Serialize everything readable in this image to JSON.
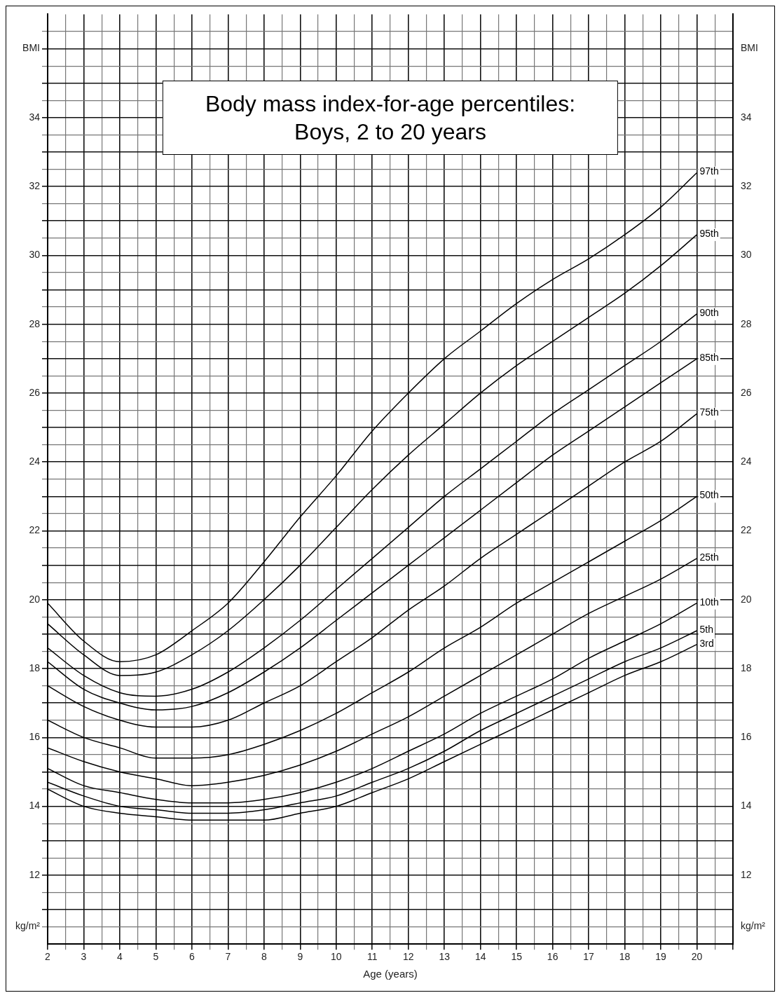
{
  "chart_data": {
    "type": "line",
    "title": "Body mass index-for-age percentiles:\nBoys, 2 to 20 years",
    "xlabel": "Age (years)",
    "x": [
      2,
      3,
      4,
      5,
      6,
      7,
      8,
      9,
      10,
      11,
      12,
      13,
      14,
      15,
      16,
      17,
      18,
      19,
      20
    ],
    "series": [
      {
        "name": "97th",
        "color": "#000000",
        "values": [
          19.9,
          18.8,
          18.2,
          18.4,
          19.1,
          19.9,
          21.1,
          22.4,
          23.6,
          24.9,
          26.0,
          27.0,
          27.8,
          28.6,
          29.3,
          29.9,
          30.6,
          31.4,
          32.4
        ]
      },
      {
        "name": "95th",
        "color": "#000000",
        "values": [
          19.3,
          18.4,
          17.8,
          17.9,
          18.4,
          19.1,
          20.0,
          21.0,
          22.1,
          23.2,
          24.2,
          25.1,
          26.0,
          26.8,
          27.5,
          28.2,
          28.9,
          29.7,
          30.6
        ]
      },
      {
        "name": "90th",
        "color": "#000000",
        "values": [
          18.6,
          17.8,
          17.3,
          17.2,
          17.4,
          17.9,
          18.6,
          19.4,
          20.3,
          21.2,
          22.1,
          23.0,
          23.8,
          24.6,
          25.4,
          26.1,
          26.8,
          27.5,
          28.3
        ]
      },
      {
        "name": "85th",
        "color": "#000000",
        "values": [
          18.2,
          17.4,
          17.0,
          16.8,
          16.9,
          17.3,
          17.9,
          18.6,
          19.4,
          20.2,
          21.0,
          21.8,
          22.6,
          23.4,
          24.2,
          24.9,
          25.6,
          26.3,
          27.0
        ]
      },
      {
        "name": "75th",
        "color": "#000000",
        "values": [
          17.5,
          16.9,
          16.5,
          16.3,
          16.3,
          16.5,
          17.0,
          17.5,
          18.2,
          18.9,
          19.7,
          20.4,
          21.2,
          21.9,
          22.6,
          23.3,
          24.0,
          24.6,
          25.4
        ]
      },
      {
        "name": "50th",
        "color": "#000000",
        "values": [
          16.5,
          16.0,
          15.7,
          15.4,
          15.4,
          15.5,
          15.8,
          16.2,
          16.7,
          17.3,
          17.9,
          18.6,
          19.2,
          19.9,
          20.5,
          21.1,
          21.7,
          22.3,
          23.0
        ]
      },
      {
        "name": "25th",
        "color": "#000000",
        "values": [
          15.7,
          15.3,
          15.0,
          14.8,
          14.6,
          14.7,
          14.9,
          15.2,
          15.6,
          16.1,
          16.6,
          17.2,
          17.8,
          18.4,
          19.0,
          19.6,
          20.1,
          20.6,
          21.2
        ]
      },
      {
        "name": "10th",
        "color": "#000000",
        "values": [
          15.1,
          14.6,
          14.4,
          14.2,
          14.1,
          14.1,
          14.2,
          14.4,
          14.7,
          15.1,
          15.6,
          16.1,
          16.7,
          17.2,
          17.7,
          18.3,
          18.8,
          19.3,
          19.9
        ]
      },
      {
        "name": "5th",
        "color": "#000000",
        "values": [
          14.7,
          14.3,
          14.0,
          13.9,
          13.8,
          13.8,
          13.9,
          14.1,
          14.3,
          14.7,
          15.1,
          15.6,
          16.2,
          16.7,
          17.2,
          17.7,
          18.2,
          18.6,
          19.1
        ]
      },
      {
        "name": "3rd",
        "color": "#000000",
        "values": [
          14.5,
          14.0,
          13.8,
          13.7,
          13.6,
          13.6,
          13.6,
          13.8,
          14.0,
          14.4,
          14.8,
          15.3,
          15.8,
          16.3,
          16.8,
          17.3,
          17.8,
          18.2,
          18.7
        ]
      }
    ],
    "xlim": [
      2,
      21
    ],
    "xticks": [
      2,
      {
        "value": 2.5,
        "label": null
      },
      3,
      {
        "value": 3.5,
        "label": null
      },
      4,
      {
        "value": 4.5,
        "label": null
      },
      5,
      {
        "value": 5.5,
        "label": null
      },
      6,
      {
        "value": 6.5,
        "label": null
      },
      7,
      {
        "value": 7.5,
        "label": null
      },
      8,
      {
        "value": 8.5,
        "label": null
      },
      9,
      {
        "value": 9.5,
        "label": null
      },
      10,
      {
        "value": 10.5,
        "label": null
      },
      11,
      {
        "value": 11.5,
        "label": null
      },
      12,
      {
        "value": 12.5,
        "label": null
      },
      13,
      {
        "value": 13.5,
        "label": null
      },
      14,
      {
        "value": 14.5,
        "label": null
      },
      15,
      {
        "value": 15.5,
        "label": null
      },
      16,
      {
        "value": 16.5,
        "label": null
      },
      17,
      {
        "value": 17.5,
        "label": null
      },
      18,
      {
        "value": 18.5,
        "label": null
      },
      19,
      {
        "value": 19.5,
        "label": null
      },
      20,
      {
        "value": 20.5,
        "label": null
      },
      {
        "value": 21,
        "label": null
      }
    ],
    "ylim": [
      10,
      37
    ],
    "yticks": [
      {
        "value": 10.5,
        "label": "kg/m²"
      },
      {
        "value": 11,
        "label": null
      },
      {
        "value": 11.5,
        "label": null
      },
      12,
      {
        "value": 12.5,
        "label": null
      },
      {
        "value": 13,
        "label": null
      },
      {
        "value": 13.5,
        "label": null
      },
      14,
      {
        "value": 14.5,
        "label": null
      },
      {
        "value": 15,
        "label": null
      },
      {
        "value": 15.5,
        "label": null
      },
      16,
      {
        "value": 16.5,
        "label": null
      },
      {
        "value": 17,
        "label": null
      },
      {
        "value": 17.5,
        "label": null
      },
      18,
      {
        "value": 18.5,
        "label": null
      },
      {
        "value": 19,
        "label": null
      },
      {
        "value": 19.5,
        "label": null
      },
      20,
      {
        "value": 20.5,
        "label": null
      },
      {
        "value": 21,
        "label": null
      },
      {
        "value": 21.5,
        "label": null
      },
      22,
      {
        "value": 22.5,
        "label": null
      },
      {
        "value": 23,
        "label": null
      },
      {
        "value": 23.5,
        "label": null
      },
      24,
      {
        "value": 24.5,
        "label": null
      },
      {
        "value": 25,
        "label": null
      },
      {
        "value": 25.5,
        "label": null
      },
      26,
      {
        "value": 26.5,
        "label": null
      },
      {
        "value": 27,
        "label": null
      },
      {
        "value": 27.5,
        "label": null
      },
      28,
      {
        "value": 28.5,
        "label": null
      },
      {
        "value": 29,
        "label": null
      },
      {
        "value": 29.5,
        "label": null
      },
      30,
      {
        "value": 30.5,
        "label": null
      },
      {
        "value": 31,
        "label": null
      },
      {
        "value": 31.5,
        "label": null
      },
      32,
      {
        "value": 32.5,
        "label": null
      },
      {
        "value": 33,
        "label": null
      },
      {
        "value": 33.5,
        "label": null
      },
      34,
      {
        "value": 34.5,
        "label": null
      },
      {
        "value": 35,
        "label": null
      },
      {
        "value": 35.5,
        "label": null
      },
      {
        "value": 36,
        "label": "BMI"
      },
      {
        "value": 36.5,
        "label": null
      }
    ],
    "y2lim": [
      10,
      37
    ],
    "y2ticks": [
      {
        "value": 10.5,
        "label": "kg/m²"
      },
      12,
      14,
      16,
      18,
      20,
      22,
      24,
      26,
      28,
      30,
      32,
      34,
      {
        "value": 36,
        "label": "BMI"
      }
    ],
    "grid": true,
    "legend": false,
    "marker": "none",
    "line_style": "solid"
  }
}
